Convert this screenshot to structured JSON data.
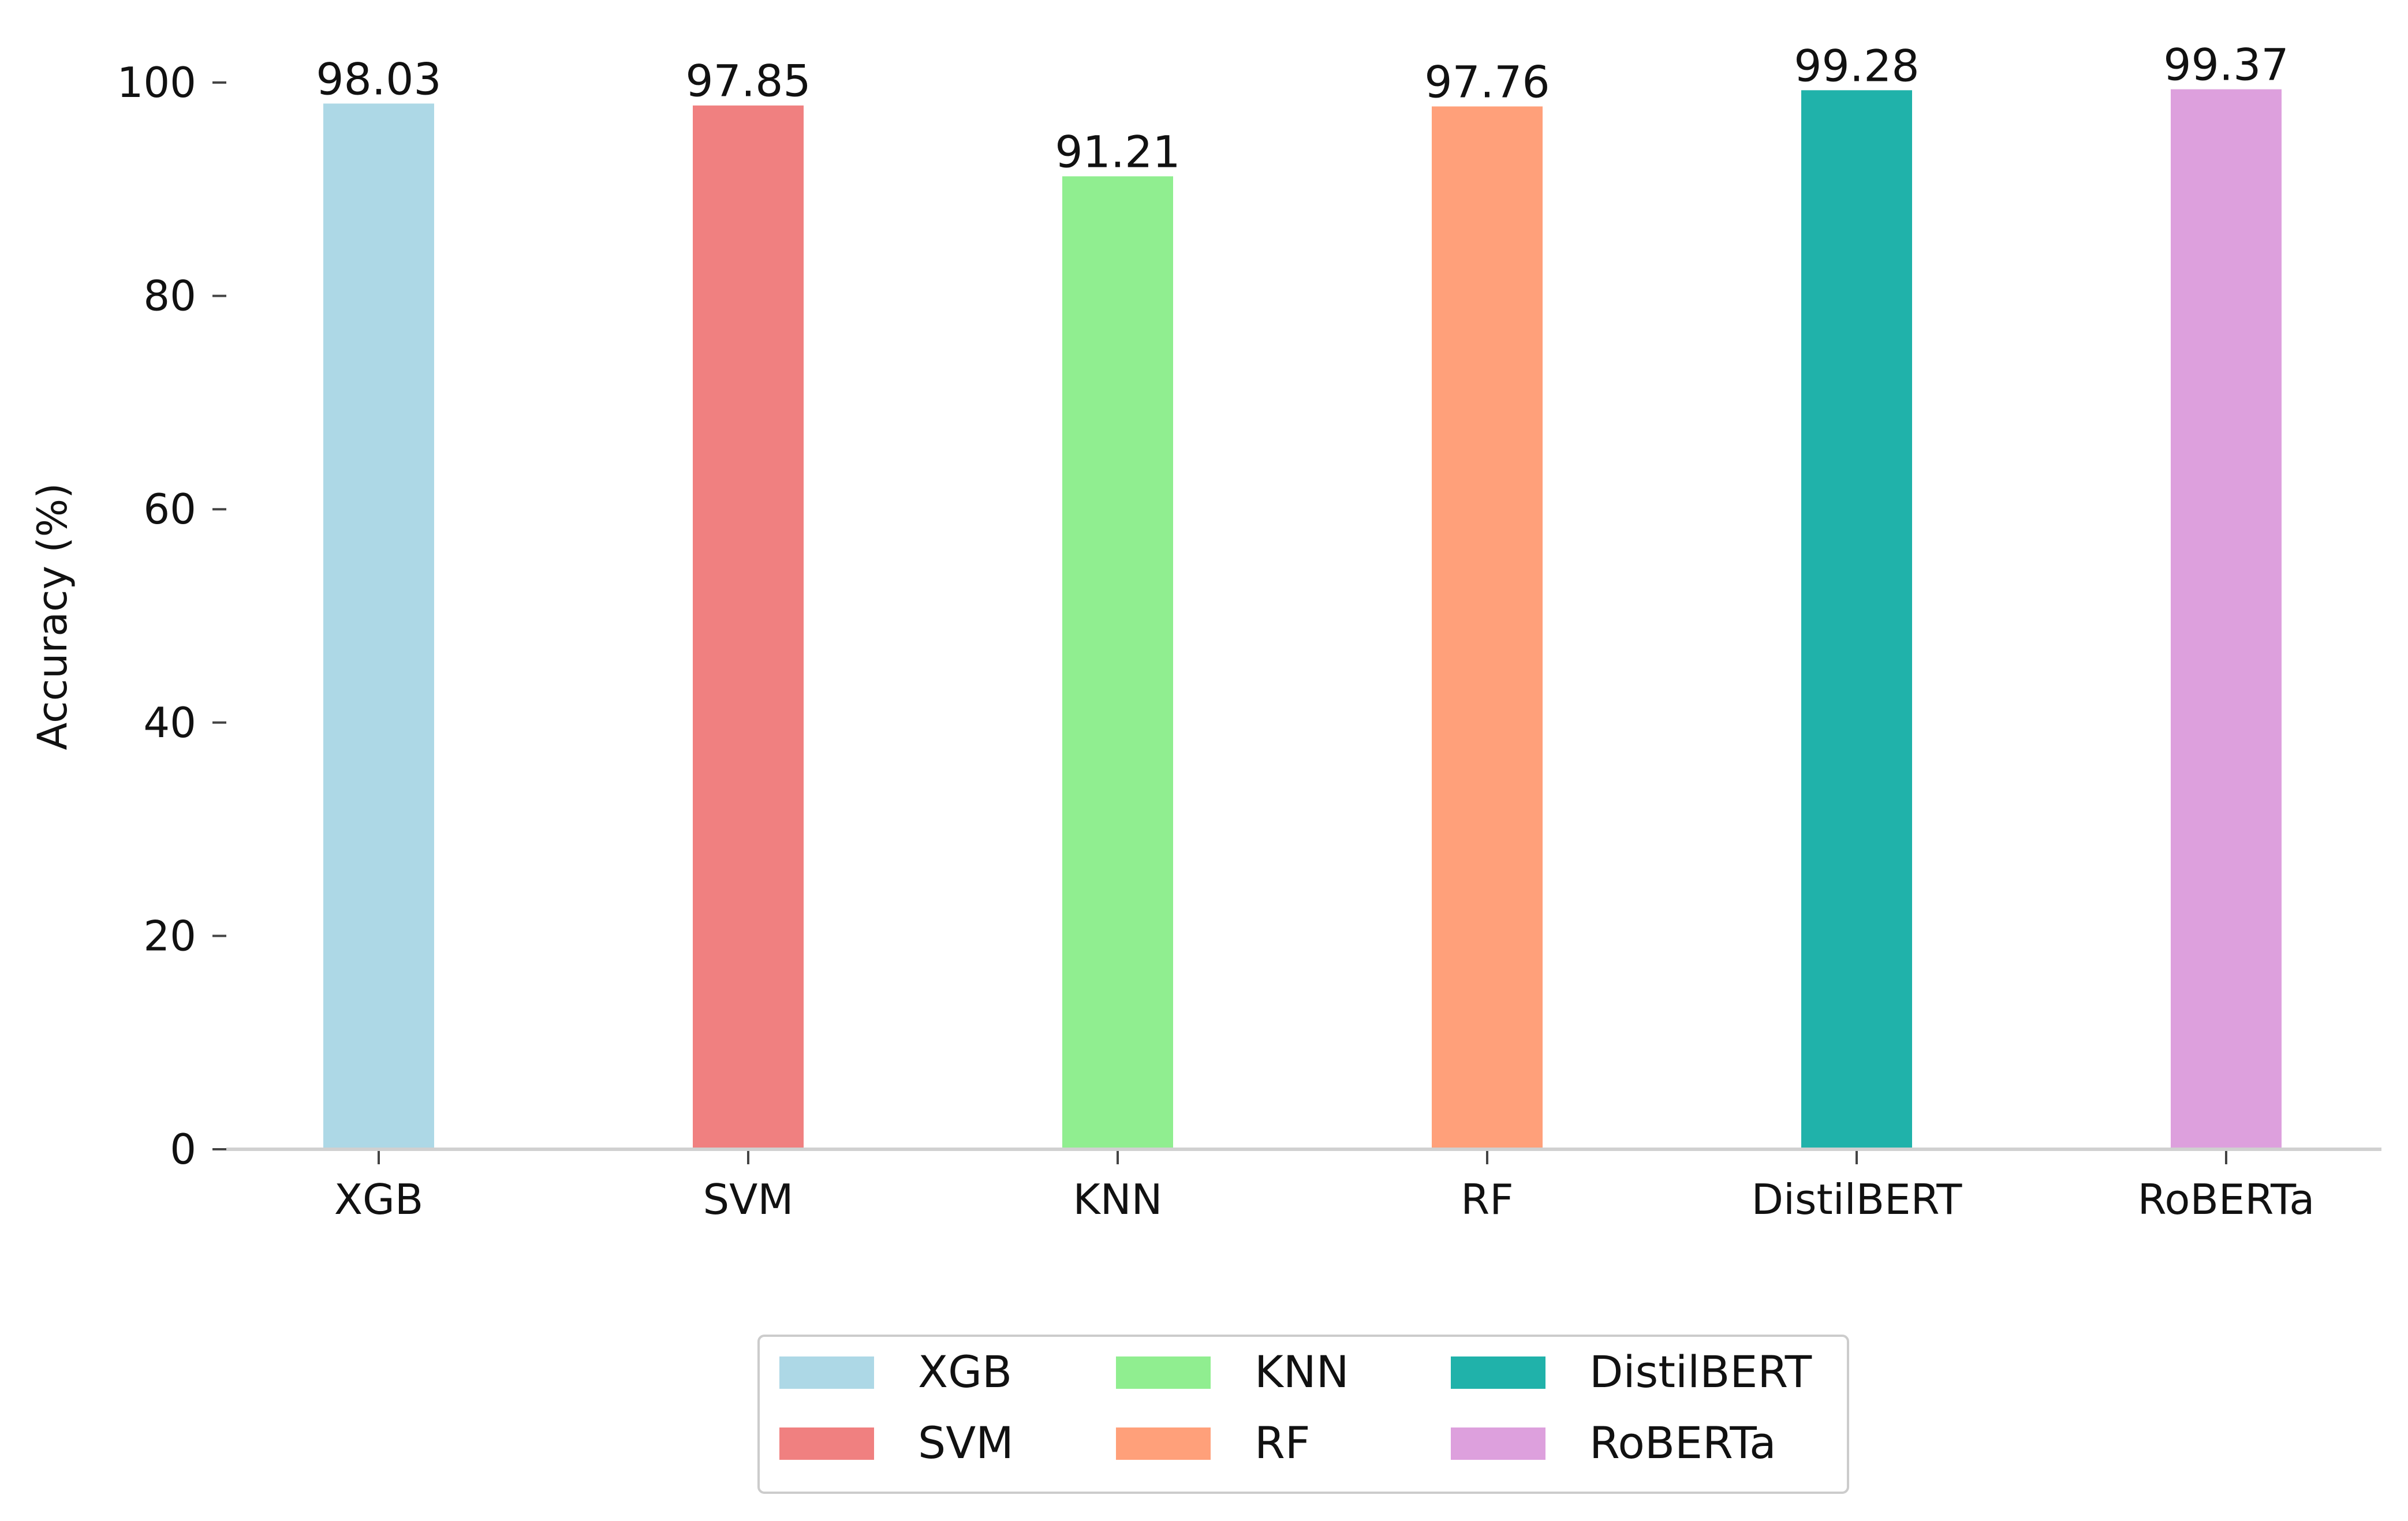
{
  "chart_data": {
    "type": "bar",
    "title": "",
    "xlabel": "",
    "ylabel": "Accuracy (%)",
    "ylim": [
      0,
      100
    ],
    "yticks": [
      0,
      20,
      40,
      60,
      80,
      100
    ],
    "grid": false,
    "categories": [
      "XGB",
      "SVM",
      "KNN",
      "RF",
      "DistilBERT",
      "RoBERTa"
    ],
    "values": [
      98.03,
      97.85,
      91.21,
      97.76,
      99.28,
      99.37
    ],
    "value_labels": [
      "98.03",
      "97.85",
      "91.21",
      "97.76",
      "99.28",
      "99.37"
    ],
    "colors": [
      "#add8e6",
      "#f08080",
      "#90ee90",
      "#ffa07a",
      "#20b2aa",
      "#dda0dd"
    ],
    "legend": {
      "placement": "bottom-center",
      "columns": 3,
      "entries": [
        "XGB",
        "SVM",
        "KNN",
        "RF",
        "DistilBERT",
        "RoBERTa"
      ]
    }
  }
}
